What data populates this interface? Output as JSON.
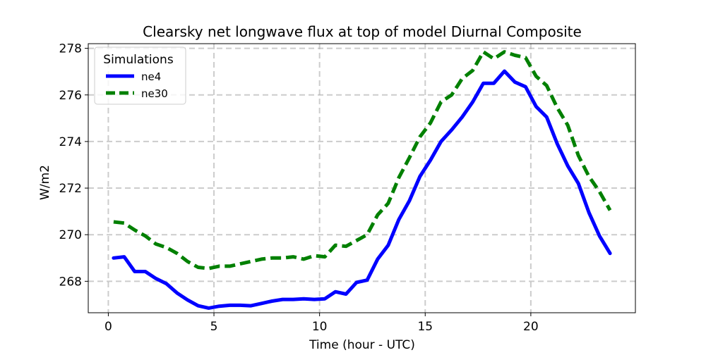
{
  "chart_data": {
    "type": "line",
    "title": "Clearsky net longwave flux at top of model Diurnal Composite",
    "xlabel": "Time (hour - UTC)",
    "ylabel": "W/m2",
    "xlim": [
      -0.95,
      24.95
    ],
    "ylim": [
      266.65,
      278.2
    ],
    "xticks": [
      0,
      5,
      10,
      15,
      20
    ],
    "yticks": [
      268,
      270,
      272,
      274,
      276,
      278
    ],
    "grid": true,
    "legend": {
      "title": "Simulations",
      "position": "upper-left"
    },
    "x": [
      0.25,
      0.75,
      1.25,
      1.75,
      2.25,
      2.75,
      3.25,
      3.75,
      4.25,
      4.75,
      5.25,
      5.75,
      6.25,
      6.75,
      7.25,
      7.75,
      8.25,
      8.75,
      9.25,
      9.75,
      10.25,
      10.75,
      11.25,
      11.75,
      12.25,
      12.75,
      13.25,
      13.75,
      14.25,
      14.75,
      15.25,
      15.75,
      16.25,
      16.75,
      17.25,
      17.75,
      18.25,
      18.75,
      19.25,
      19.75,
      20.25,
      20.75,
      21.25,
      21.75,
      22.25,
      22.75,
      23.25,
      23.75
    ],
    "series": [
      {
        "name": "ne4",
        "color": "#0000ff",
        "style": "solid",
        "values": [
          269.0,
          269.05,
          268.42,
          268.42,
          268.12,
          267.9,
          267.5,
          267.2,
          266.95,
          266.85,
          266.93,
          266.97,
          266.97,
          266.95,
          267.05,
          267.15,
          267.22,
          267.22,
          267.25,
          267.22,
          267.25,
          267.55,
          267.45,
          267.95,
          268.05,
          268.95,
          269.55,
          270.65,
          271.45,
          272.5,
          273.2,
          274.0,
          274.5,
          275.05,
          275.7,
          276.5,
          276.5,
          277.02,
          276.55,
          276.35,
          275.5,
          275.05,
          273.9,
          272.95,
          272.2,
          270.95,
          269.95,
          269.2
        ]
      },
      {
        "name": "ne30",
        "color": "#008000",
        "style": "dashed",
        "values": [
          270.55,
          270.5,
          270.2,
          269.95,
          269.6,
          269.45,
          269.2,
          268.85,
          268.6,
          268.55,
          268.65,
          268.65,
          268.75,
          268.85,
          268.95,
          269.0,
          269.0,
          269.05,
          268.95,
          269.1,
          269.05,
          269.55,
          269.5,
          269.75,
          270.0,
          270.85,
          271.35,
          272.45,
          273.3,
          274.2,
          274.8,
          275.7,
          276.0,
          276.7,
          277.05,
          277.85,
          277.55,
          277.85,
          277.7,
          277.6,
          276.8,
          276.4,
          275.45,
          274.7,
          273.4,
          272.5,
          271.85,
          271.05
        ]
      }
    ]
  }
}
